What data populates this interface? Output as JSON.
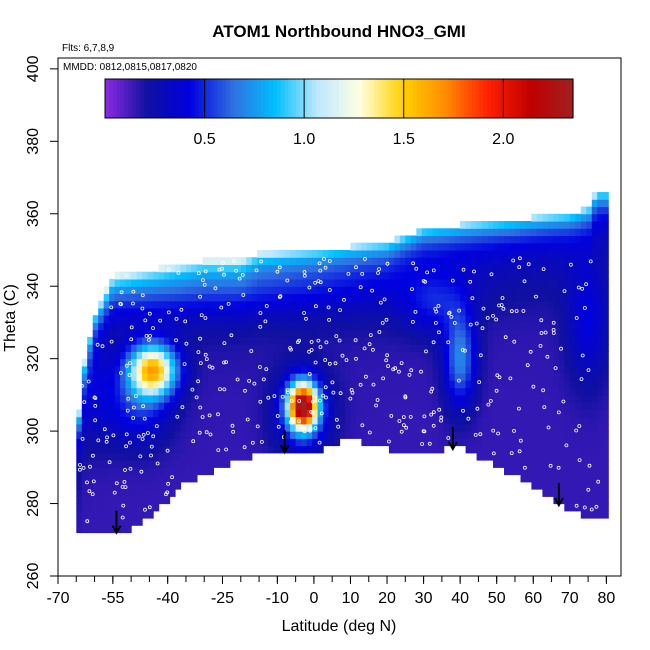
{
  "chart_data": {
    "type": "heatmap",
    "title": "ATOM1 Northbound HNO3_GMI",
    "flights_note": "Flts: 6,7,8,9",
    "dates_note": "MMDD: 0812,0815,0817,0820",
    "xlabel": "Latitude (deg N)",
    "ylabel": "Theta (C)",
    "xlim": [
      -70,
      84
    ],
    "ylim": [
      260,
      403
    ],
    "x_ticks": [
      -70,
      -55,
      -40,
      -25,
      -10,
      0,
      10,
      20,
      30,
      40,
      50,
      60,
      70,
      80
    ],
    "y_ticks": [
      260,
      280,
      300,
      320,
      340,
      360,
      380,
      400
    ],
    "colorbar": {
      "range": [
        0,
        2.35
      ],
      "ticks": [
        0.5,
        1.0,
        1.5,
        2.0
      ],
      "tick_labels": [
        "0.5",
        "1.0",
        "1.5",
        "2.0"
      ],
      "colors": [
        "#8a2be2",
        "#1010a0",
        "#0000e0",
        "#2f6fe0",
        "#00bfff",
        "#bfe8ff",
        "#ffffe0",
        "#ffd000",
        "#ff8c00",
        "#ff2000",
        "#c00000",
        "#a02020"
      ]
    },
    "descent_arrows_lat": [
      -54,
      -8,
      38,
      67
    ],
    "field": {
      "background": 0.15,
      "features": [
        {
          "lat": -44,
          "theta": 317,
          "value": 1.45,
          "name": "southern plume"
        },
        {
          "lat": -3,
          "theta": 307,
          "value": 2.1,
          "name": "tropical maximum"
        },
        {
          "lat": 40,
          "theta": 320,
          "value": 0.7,
          "name": "midlatitude column"
        }
      ]
    }
  }
}
